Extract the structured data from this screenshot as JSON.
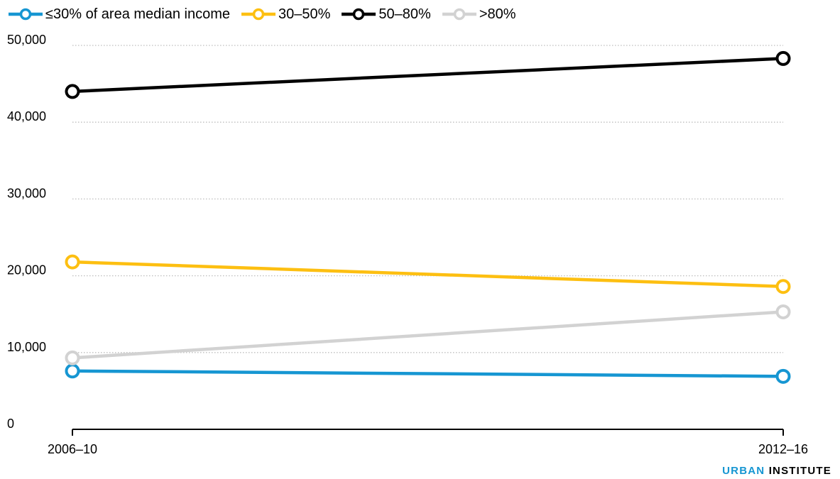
{
  "chart_data": {
    "type": "line",
    "categories": [
      "2006–10",
      "2012–16"
    ],
    "series": [
      {
        "name": "≤30% of area median income",
        "color": "#1696d2",
        "values": [
          7600,
          6900
        ]
      },
      {
        "name": "30–50%",
        "color": "#fdbf11",
        "values": [
          21800,
          18600
        ]
      },
      {
        "name": "50–80%",
        "color": "#000000",
        "values": [
          44000,
          48300
        ]
      },
      {
        "name": ">80%",
        "color": "#d2d2d2",
        "values": [
          9300,
          15300
        ]
      }
    ],
    "yticks": [
      "0",
      "10,000",
      "20,000",
      "30,000",
      "40,000",
      "50,000"
    ],
    "ylim": [
      0,
      50000
    ],
    "grid": true,
    "legend_position": "top-left",
    "xlabel": "",
    "ylabel": ""
  },
  "credit": {
    "part1": "URBAN",
    "part2": "INSTITUTE"
  }
}
